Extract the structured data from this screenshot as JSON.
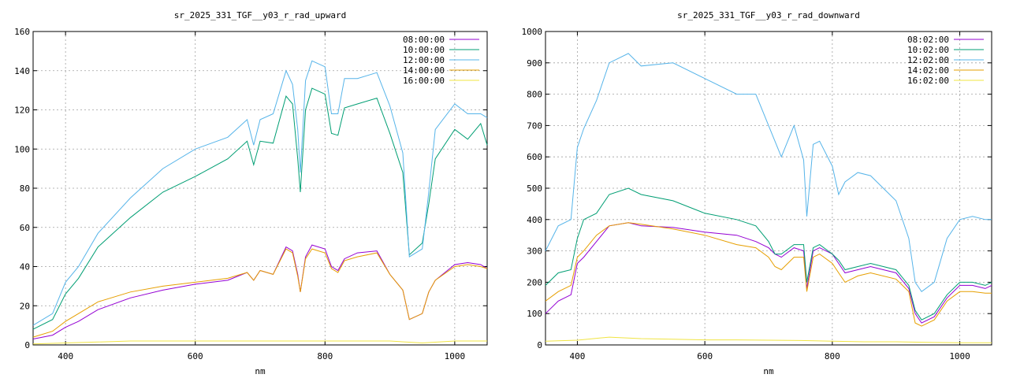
{
  "chart_data": [
    {
      "type": "line",
      "title": "sr_2025_331_TGF__y03_r_rad_upward",
      "xlabel": "nm",
      "ylabel": "",
      "xlim": [
        350,
        1050
      ],
      "ylim": [
        0,
        160
      ],
      "xticks": [
        400,
        600,
        800,
        1000
      ],
      "yticks": [
        0,
        20,
        40,
        60,
        80,
        100,
        120,
        140,
        160
      ],
      "grid": true,
      "legend_position": "top-right",
      "series": [
        {
          "name": "08:00:00",
          "color": "#9400d3",
          "x": [
            350,
            380,
            400,
            420,
            450,
            500,
            550,
            600,
            650,
            680,
            690,
            700,
            720,
            740,
            750,
            758,
            762,
            770,
            780,
            800,
            810,
            820,
            830,
            850,
            880,
            900,
            920,
            930,
            950,
            960,
            970,
            1000,
            1020,
            1040,
            1050
          ],
          "y": [
            3,
            5,
            9,
            12,
            18,
            24,
            28,
            31,
            33,
            37,
            33,
            38,
            36,
            50,
            48,
            36,
            27,
            45,
            51,
            49,
            40,
            38,
            44,
            47,
            48,
            36,
            28,
            13,
            16,
            27,
            33,
            41,
            42,
            41,
            39
          ]
        },
        {
          "name": "10:00:00",
          "color": "#009e73",
          "x": [
            350,
            380,
            400,
            420,
            450,
            500,
            550,
            600,
            650,
            680,
            690,
            700,
            720,
            740,
            750,
            758,
            762,
            770,
            780,
            800,
            810,
            820,
            830,
            850,
            880,
            900,
            920,
            930,
            950,
            960,
            970,
            1000,
            1020,
            1040,
            1050
          ],
          "y": [
            8,
            13,
            26,
            34,
            50,
            65,
            78,
            86,
            95,
            104,
            92,
            104,
            103,
            127,
            123,
            95,
            78,
            120,
            131,
            128,
            108,
            107,
            121,
            123,
            126,
            108,
            88,
            46,
            52,
            72,
            95,
            110,
            105,
            113,
            102
          ]
        },
        {
          "name": "12:00:00",
          "color": "#56b4e9",
          "x": [
            350,
            380,
            400,
            420,
            450,
            500,
            550,
            600,
            650,
            680,
            690,
            700,
            720,
            740,
            750,
            758,
            762,
            770,
            780,
            800,
            810,
            820,
            830,
            850,
            880,
            900,
            920,
            930,
            950,
            960,
            970,
            1000,
            1020,
            1040,
            1050
          ],
          "y": [
            10,
            16,
            32,
            40,
            57,
            75,
            90,
            100,
            106,
            115,
            102,
            115,
            118,
            140,
            133,
            110,
            88,
            135,
            145,
            142,
            118,
            118,
            136,
            136,
            139,
            122,
            98,
            45,
            49,
            78,
            110,
            123,
            118,
            118,
            116
          ]
        },
        {
          "name": "14:00:00",
          "color": "#e69f00",
          "x": [
            350,
            380,
            400,
            420,
            450,
            500,
            550,
            600,
            650,
            680,
            690,
            700,
            720,
            740,
            750,
            758,
            762,
            770,
            780,
            800,
            810,
            820,
            830,
            850,
            880,
            900,
            920,
            930,
            950,
            960,
            970,
            1000,
            1020,
            1040,
            1050
          ],
          "y": [
            4,
            7,
            12,
            16,
            22,
            27,
            30,
            32,
            34,
            37,
            33,
            38,
            36,
            49,
            47,
            35,
            27,
            44,
            49,
            47,
            39,
            37,
            43,
            45,
            47,
            36,
            28,
            13,
            16,
            27,
            33,
            40,
            41,
            40,
            39
          ]
        },
        {
          "name": "16:00:00",
          "color": "#f0e442",
          "x": [
            350,
            400,
            450,
            500,
            550,
            600,
            650,
            700,
            750,
            800,
            850,
            900,
            950,
            1000,
            1050
          ],
          "y": [
            0.5,
            1,
            1.5,
            2,
            2,
            2,
            2,
            2,
            2,
            2,
            2,
            2,
            1,
            2,
            2
          ]
        }
      ]
    },
    {
      "type": "line",
      "title": "sr_2025_331_TGF__y03_r_rad_downward",
      "xlabel": "nm",
      "ylabel": "",
      "xlim": [
        350,
        1050
      ],
      "ylim": [
        0,
        1000
      ],
      "xticks": [
        400,
        600,
        800,
        1000
      ],
      "yticks": [
        0,
        100,
        200,
        300,
        400,
        500,
        600,
        700,
        800,
        900,
        1000
      ],
      "grid": true,
      "legend_position": "top-right",
      "series": [
        {
          "name": "08:02:00",
          "color": "#9400d3",
          "x": [
            350,
            370,
            390,
            400,
            410,
            430,
            450,
            480,
            500,
            550,
            600,
            650,
            680,
            700,
            710,
            720,
            740,
            755,
            760,
            770,
            780,
            800,
            810,
            820,
            840,
            860,
            900,
            920,
            930,
            940,
            960,
            980,
            1000,
            1020,
            1040,
            1050
          ],
          "y": [
            100,
            140,
            160,
            260,
            280,
            330,
            380,
            390,
            380,
            375,
            360,
            350,
            330,
            310,
            290,
            280,
            310,
            300,
            180,
            300,
            310,
            290,
            260,
            230,
            240,
            250,
            230,
            180,
            100,
            70,
            90,
            150,
            190,
            190,
            180,
            190
          ]
        },
        {
          "name": "10:02:00",
          "color": "#009e73",
          "x": [
            350,
            370,
            390,
            400,
            410,
            430,
            450,
            480,
            500,
            550,
            600,
            650,
            680,
            700,
            710,
            720,
            740,
            755,
            760,
            770,
            780,
            800,
            810,
            820,
            840,
            860,
            900,
            920,
            930,
            940,
            960,
            980,
            1000,
            1020,
            1040,
            1050
          ],
          "y": [
            190,
            230,
            240,
            340,
            400,
            420,
            480,
            500,
            480,
            460,
            420,
            400,
            380,
            330,
            290,
            290,
            320,
            320,
            200,
            310,
            320,
            290,
            270,
            240,
            250,
            260,
            240,
            190,
            110,
            80,
            100,
            160,
            200,
            200,
            190,
            200
          ]
        },
        {
          "name": "12:02:00",
          "color": "#56b4e9",
          "x": [
            350,
            370,
            390,
            400,
            410,
            430,
            450,
            480,
            500,
            550,
            600,
            650,
            680,
            700,
            710,
            720,
            740,
            755,
            760,
            770,
            780,
            800,
            810,
            820,
            840,
            860,
            900,
            920,
            930,
            940,
            960,
            980,
            1000,
            1020,
            1040,
            1050
          ],
          "y": [
            300,
            380,
            400,
            630,
            690,
            780,
            900,
            930,
            890,
            900,
            850,
            800,
            800,
            700,
            650,
            600,
            700,
            590,
            410,
            640,
            650,
            570,
            480,
            520,
            550,
            540,
            460,
            340,
            200,
            170,
            200,
            340,
            400,
            410,
            400,
            400
          ]
        },
        {
          "name": "14:02:00",
          "color": "#e69f00",
          "x": [
            350,
            370,
            390,
            400,
            410,
            430,
            450,
            480,
            500,
            550,
            600,
            650,
            680,
            700,
            710,
            720,
            740,
            755,
            760,
            770,
            780,
            800,
            810,
            820,
            840,
            860,
            900,
            920,
            930,
            940,
            960,
            980,
            1000,
            1020,
            1040,
            1050
          ],
          "y": [
            140,
            170,
            190,
            280,
            300,
            350,
            380,
            390,
            385,
            370,
            350,
            320,
            310,
            280,
            250,
            240,
            280,
            280,
            170,
            280,
            290,
            260,
            230,
            200,
            220,
            230,
            210,
            170,
            70,
            60,
            80,
            140,
            170,
            170,
            165,
            165
          ]
        },
        {
          "name": "16:02:00",
          "color": "#f0e442",
          "x": [
            350,
            400,
            450,
            500,
            550,
            600,
            650,
            700,
            750,
            800,
            850,
            900,
            950,
            1000,
            1050
          ],
          "y": [
            12,
            15,
            25,
            20,
            18,
            16,
            16,
            15,
            14,
            12,
            10,
            10,
            8,
            7,
            7
          ]
        }
      ]
    }
  ]
}
